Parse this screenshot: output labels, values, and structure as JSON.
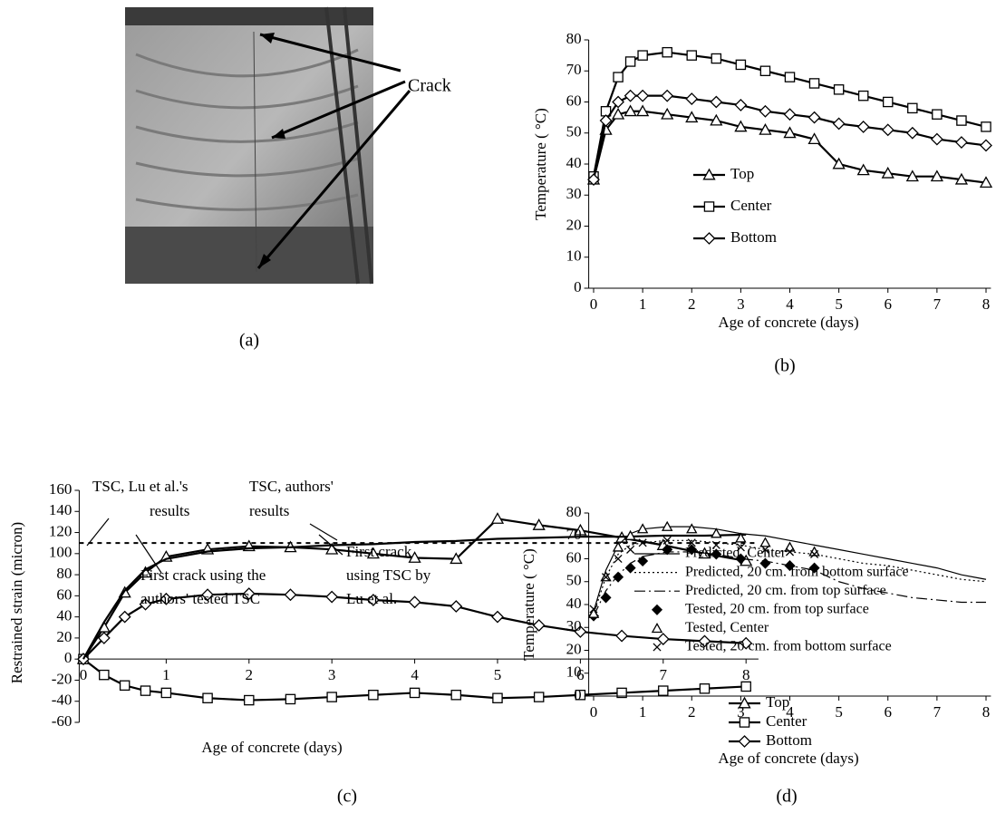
{
  "photo": {
    "annotation": "Crack",
    "label": "(a)"
  },
  "chart_data": [
    {
      "type": "line",
      "label": "(b)",
      "y_label": "Temperature ( °C)",
      "x_label": "Age of concrete (days)",
      "x": [
        0,
        0.25,
        0.5,
        0.75,
        1,
        1.5,
        2,
        2.5,
        3,
        3.5,
        4,
        4.5,
        5,
        5.5,
        6,
        6.5,
        7,
        7.5,
        8
      ],
      "xlim": [
        -0.1,
        8.1
      ],
      "xticks": [
        0,
        1,
        2,
        3,
        4,
        5,
        6,
        7,
        8
      ],
      "ylim": [
        0,
        80
      ],
      "yticks": [
        0,
        10,
        20,
        30,
        40,
        50,
        60,
        70,
        80
      ],
      "series": [
        {
          "name": "Top",
          "color": "#000000",
          "marker": "triangle",
          "dash": "solid",
          "values": [
            35,
            51,
            56,
            57,
            57,
            56,
            55,
            54,
            52,
            51,
            50,
            48,
            40,
            38,
            37,
            36,
            36,
            35,
            34
          ]
        },
        {
          "name": "Center",
          "color": "#000000",
          "marker": "square",
          "dash": "solid",
          "values": [
            36,
            57,
            68,
            73,
            75,
            76,
            75,
            74,
            72,
            70,
            68,
            66,
            64,
            62,
            60,
            58,
            56,
            54,
            52
          ]
        },
        {
          "name": "Bottom",
          "color": "#000000",
          "marker": "diamond",
          "dash": "solid",
          "values": [
            35,
            54,
            60,
            62,
            62,
            62,
            61,
            60,
            59,
            57,
            56,
            55,
            53,
            52,
            51,
            50,
            48,
            47,
            46
          ]
        }
      ]
    },
    {
      "type": "line",
      "label": "(c)",
      "y_label": "Restrained strain (micron)",
      "x_label": "Age of concrete (days)",
      "x": [
        0,
        0.25,
        0.5,
        0.75,
        1,
        1.5,
        2,
        2.5,
        3,
        3.5,
        4,
        4.5,
        5,
        5.5,
        6,
        6.5,
        7,
        7.5,
        8
      ],
      "xlim": [
        -0.05,
        8.15
      ],
      "xticks": [
        0,
        1,
        2,
        3,
        4,
        5,
        6,
        7,
        8
      ],
      "ylim": [
        -60,
        160
      ],
      "yticks": [
        -60,
        -40,
        -20,
        0,
        20,
        40,
        60,
        80,
        100,
        120,
        140,
        160
      ],
      "reference_line": 110,
      "series": [
        {
          "name": "Top",
          "color": "#000000",
          "marker": "triangle",
          "dash": "solid",
          "values": [
            0,
            30,
            63,
            82,
            97,
            104,
            107,
            106,
            104,
            100,
            96,
            95,
            133,
            127,
            122,
            115,
            108,
            100,
            93
          ]
        },
        {
          "name": "Center",
          "color": "#000000",
          "marker": "square",
          "dash": "solid",
          "values": [
            0,
            -15,
            -25,
            -30,
            -32,
            -37,
            -39,
            -38,
            -36,
            -34,
            -32,
            -34,
            -37,
            -36,
            -34,
            -32,
            -30,
            -28,
            -26
          ]
        },
        {
          "name": "Bottom",
          "color": "#000000",
          "marker": "diamond",
          "dash": "solid",
          "values": [
            0,
            20,
            40,
            52,
            57,
            61,
            62,
            61,
            59,
            56,
            54,
            50,
            40,
            32,
            26,
            22,
            19,
            17,
            15
          ]
        },
        {
          "color": "#000000",
          "marker": null,
          "dash": "solid",
          "values": [
            0,
            35,
            65,
            85,
            95,
            102,
            105,
            106,
            108,
            109,
            111,
            112,
            114,
            115,
            116,
            116,
            117,
            117,
            118
          ]
        }
      ],
      "annotations": [
        {
          "lines": [
            "TSC, Lu et al.'s",
            "results"
          ]
        },
        {
          "lines": [
            "TSC, authors'",
            "results"
          ]
        },
        {
          "lines": [
            "First crack",
            "using TSC by",
            "Lu et al."
          ]
        },
        {
          "lines": [
            "First crack using the",
            "authors' tested TSC"
          ]
        }
      ]
    },
    {
      "type": "line",
      "label": "(d)",
      "y_label": "Temperature ( °C)",
      "x_label": "Age of concrete (days)",
      "x": [
        0,
        0.25,
        0.5,
        0.75,
        1,
        1.5,
        2,
        2.5,
        3,
        3.5,
        4,
        4.5,
        5,
        5.5,
        6,
        6.5,
        7,
        7.5,
        8
      ],
      "xlim": [
        -0.1,
        8.1
      ],
      "xticks": [
        0,
        1,
        2,
        3,
        4,
        5,
        6,
        7,
        8
      ],
      "ylim": [
        0,
        80
      ],
      "yticks": [
        0,
        10,
        20,
        30,
        40,
        50,
        60,
        70,
        80
      ],
      "series": [
        {
          "name": "Predicted, Center",
          "color": "#000000",
          "marker": null,
          "dash": "solid",
          "values": [
            37,
            55,
            66,
            71,
            73,
            74,
            74,
            73,
            71,
            70,
            68,
            66,
            64,
            62,
            60,
            58,
            56,
            53,
            51
          ]
        },
        {
          "name": "Predicted, 20 cm. from bottom surface",
          "color": "#000000",
          "marker": null,
          "dash": "dotted",
          "values": [
            36,
            52,
            62,
            66,
            67,
            68,
            68,
            67,
            66,
            64,
            63,
            62,
            60,
            58,
            57,
            55,
            53,
            51,
            50
          ]
        },
        {
          "name": "Predicted, 20 cm. from top surface",
          "color": "#000000",
          "marker": null,
          "dash": "dashdot",
          "values": [
            35,
            46,
            53,
            58,
            61,
            63,
            63,
            62,
            60,
            59,
            57,
            55,
            50,
            47,
            45,
            43,
            42,
            41,
            41
          ]
        },
        {
          "name": "Tested,  20 cm. from top surface",
          "color": "#000000",
          "marker": "diamond-filled",
          "dash": "none",
          "values": [
            35,
            43,
            52,
            56,
            59,
            64,
            64,
            62,
            60,
            58,
            57,
            56,
            null,
            null,
            null,
            null,
            null,
            null,
            null
          ]
        },
        {
          "name": "Tested, Center",
          "color": "#000000",
          "marker": "triangle",
          "dash": "none",
          "values": [
            36,
            52,
            65,
            70,
            73,
            74,
            73,
            71,
            69,
            67,
            65,
            63,
            null,
            null,
            null,
            null,
            null,
            null,
            null
          ]
        },
        {
          "name": "Tested, 20 cm. from bottom surface",
          "color": "#000000",
          "marker": "x",
          "dash": "none",
          "values": [
            38,
            52,
            60,
            64,
            67,
            68,
            67,
            66,
            65,
            64,
            63,
            62,
            null,
            null,
            null,
            null,
            null,
            null,
            null
          ]
        }
      ]
    }
  ]
}
